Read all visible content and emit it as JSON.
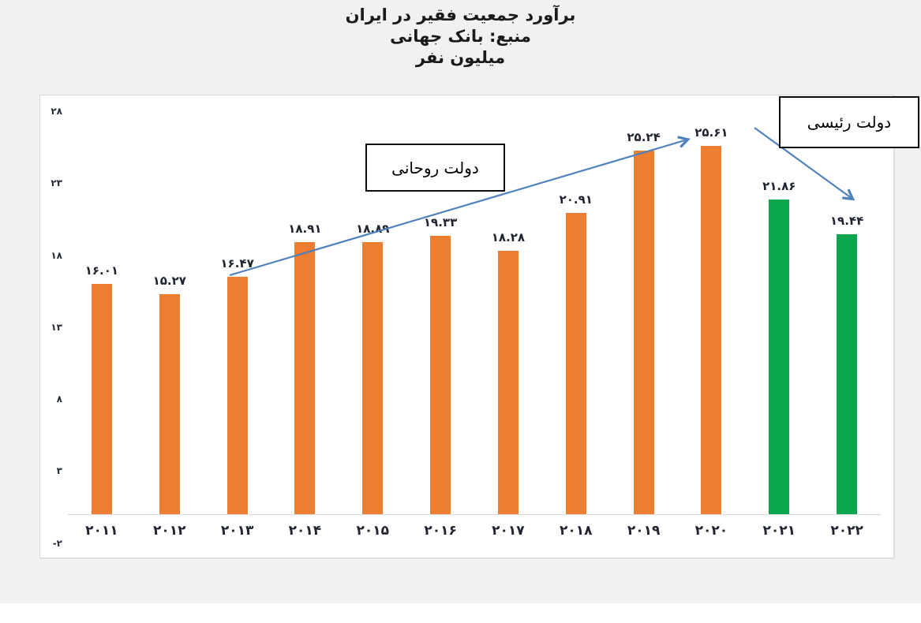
{
  "header": {
    "title": "برآورد جمعیت فقیر در ایران",
    "source": "منبع: بانک جهانی",
    "unit": "میلیون نفر"
  },
  "annotations": {
    "rouhani": "دولت روحانی",
    "raisi": "دولت رئیسی"
  },
  "colors": {
    "bar_orange": "#ED7D31",
    "bar_green": "#0CA64E",
    "arrow_blue": "#4F81BD",
    "background": "#F1F1F1",
    "label_text": "#1F2430"
  },
  "chart_data": {
    "type": "bar",
    "title": "برآورد جمعیت فقیر در ایران",
    "subtitle": "منبع: بانک جهانی",
    "ylabel": "میلیون نفر",
    "xlabel": "",
    "categories": [
      "2011",
      "2012",
      "2013",
      "2014",
      "2015",
      "2016",
      "2017",
      "2018",
      "2019",
      "2020",
      "2021",
      "2022"
    ],
    "categories_fa": [
      "۲۰۱۱",
      "۲۰۱۲",
      "۲۰۱۳",
      "۲۰۱۴",
      "۲۰۱۵",
      "۲۰۱۶",
      "۲۰۱۷",
      "۲۰۱۸",
      "۲۰۱۹",
      "۲۰۲۰",
      "۲۰۲۱",
      "۲۰۲۲"
    ],
    "values": [
      16.01,
      15.27,
      16.47,
      18.91,
      18.89,
      19.33,
      18.28,
      20.91,
      25.24,
      25.61,
      21.86,
      19.44
    ],
    "value_labels_fa": [
      "۱۶.۰۱",
      "۱۵.۲۷",
      "۱۶.۴۷",
      "۱۸.۹۱",
      "۱۸.۸۹",
      "۱۹.۳۳",
      "۱۸.۲۸",
      "۲۰.۹۱",
      "۲۵.۲۴",
      "۲۵.۶۱",
      "۲۱.۸۶",
      "۱۹.۴۴"
    ],
    "bar_colors": [
      "#ED7D31",
      "#ED7D31",
      "#ED7D31",
      "#ED7D31",
      "#ED7D31",
      "#ED7D31",
      "#ED7D31",
      "#ED7D31",
      "#ED7D31",
      "#ED7D31",
      "#0CA64E",
      "#0CA64E"
    ],
    "ylim": [
      -2,
      28
    ],
    "y_ticks": [
      {
        "value": 28,
        "label": "۲۸"
      },
      {
        "value": 23,
        "label": "۲۳"
      },
      {
        "value": 18,
        "label": "۱۸"
      },
      {
        "value": 13,
        "label": "۱۳"
      },
      {
        "value": 8,
        "label": "۸"
      },
      {
        "value": 3,
        "label": "۳"
      },
      {
        "value": -2,
        "label": "-۲"
      }
    ],
    "grid": false,
    "legend": null,
    "annotations": [
      "دولت روحانی",
      "دولت رئیسی"
    ]
  }
}
